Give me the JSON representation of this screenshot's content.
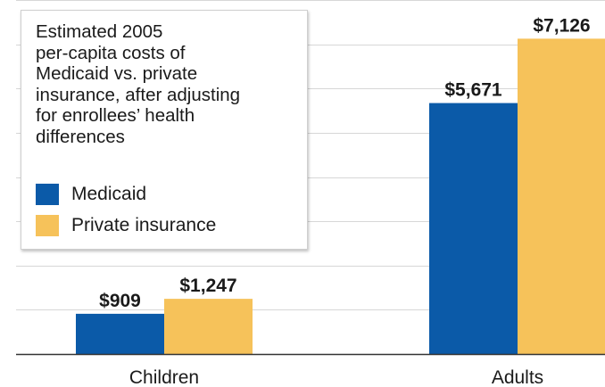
{
  "colors": {
    "medicaid": "#0b5aa8",
    "private": "#f6c25a",
    "grid": "#d7d7d7",
    "axis": "#333333"
  },
  "legend": {
    "title": "Estimated 2005\nper-capita costs of\nMedicaid vs. private\ninsurance, after adjusting\nfor enrollees’ health\ndifferences",
    "items": [
      {
        "label": "Medicaid",
        "color": "#0b5aa8"
      },
      {
        "label": "Private insurance",
        "color": "#f6c25a"
      }
    ]
  },
  "chart_data": {
    "type": "bar",
    "title": "Estimated 2005 per-capita costs of Medicaid vs. private insurance, after adjusting for enrollees’ health differences",
    "categories": [
      "Children",
      "Adults"
    ],
    "series": [
      {
        "name": "Medicaid",
        "values": [
          909,
          5671
        ],
        "labels": [
          "$909",
          "$5,671"
        ]
      },
      {
        "name": "Private insurance",
        "values": [
          1247,
          7126
        ],
        "labels": [
          "$1,247",
          "$7,126"
        ]
      }
    ],
    "xlabel": "",
    "ylabel": "",
    "ylim": [
      0,
      8000
    ],
    "grid": true,
    "legend_position": "top-left"
  }
}
